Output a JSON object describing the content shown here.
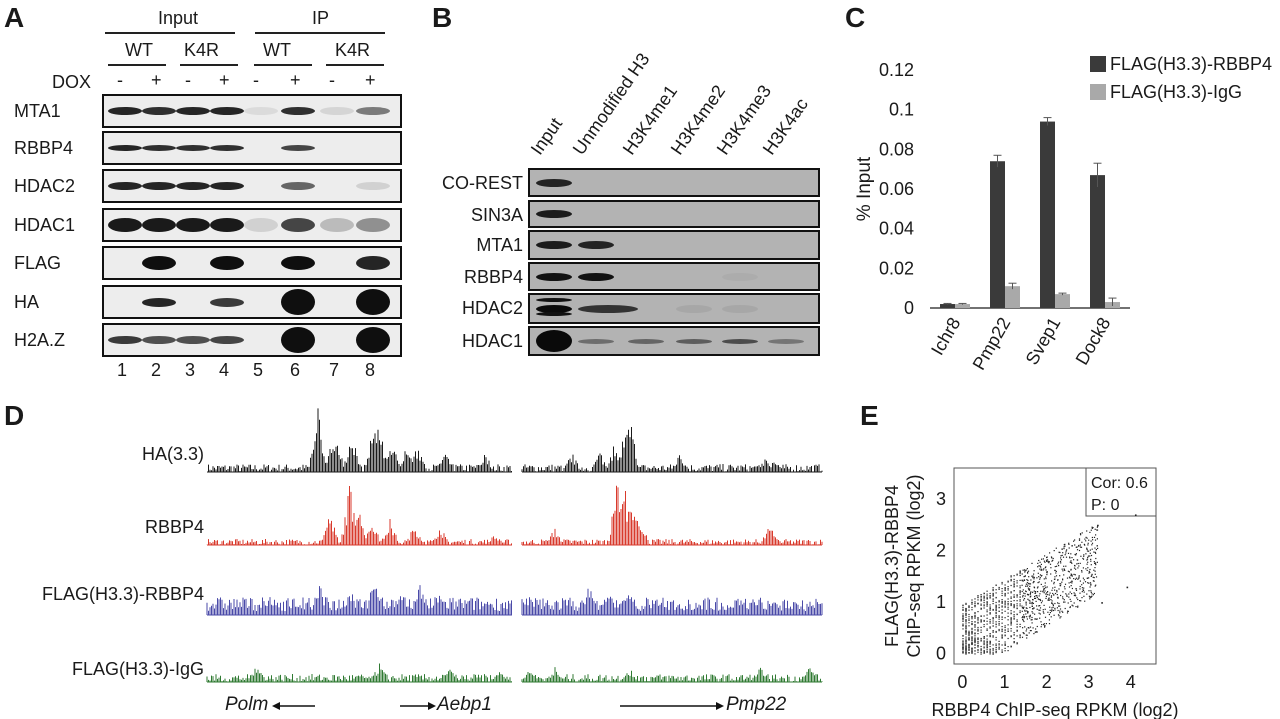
{
  "panels": {
    "A": "A",
    "B": "B",
    "C": "C",
    "D": "D",
    "E": "E"
  },
  "panelA": {
    "groups": [
      "Input",
      "IP"
    ],
    "genotypes": [
      "WT",
      "K4R",
      "WT",
      "K4R"
    ],
    "dox_label": "DOX",
    "dox": [
      "-",
      "+",
      "-",
      "+",
      "-",
      "+",
      "-",
      "+"
    ],
    "rows": [
      "MTA1",
      "RBBP4",
      "HDAC2",
      "HDAC1",
      "FLAG",
      "HA",
      "H2A.Z"
    ],
    "lanes": [
      "1",
      "2",
      "3",
      "4",
      "5",
      "6",
      "7",
      "8"
    ]
  },
  "panelB": {
    "columns": [
      "Input",
      "Unmodified H3",
      "H3K4me1",
      "H3K4me2",
      "H3K4me3",
      "H3K4ac"
    ],
    "rows": [
      "CO-REST",
      "SIN3A",
      "MTA1",
      "RBBP4",
      "HDAC2",
      "HDAC1"
    ]
  },
  "chart_data": [
    {
      "type": "bar",
      "panel": "C",
      "categories": [
        "Ichr8",
        "Pmp22",
        "Svep1",
        "Dock8"
      ],
      "ylabel": "% Input",
      "ylim": [
        0,
        0.12
      ],
      "yticks": [
        "0",
        "0.02",
        "0.04",
        "0.06",
        "0.08",
        "0.1",
        "0.12"
      ],
      "legend_position": "top-right",
      "series": [
        {
          "name": "FLAG(H3.3)-RBBP4",
          "values": [
            0.002,
            0.074,
            0.094,
            0.067
          ],
          "errors": [
            0.0003,
            0.003,
            0.002,
            0.006
          ],
          "color": "#3a3a3a"
        },
        {
          "name": "FLAG(H3.3)-IgG",
          "values": [
            0.002,
            0.011,
            0.007,
            0.003
          ],
          "errors": [
            0.0003,
            0.0015,
            0.0005,
            0.002
          ],
          "color": "#a9a9a9"
        }
      ]
    },
    {
      "type": "scatter",
      "panel": "E",
      "xlabel": "RBBP4 ChIP-seq RPKM (log2)",
      "ylabel_line1": "FLAG(H3.3)-RBBP4",
      "ylabel_line2": "ChIP-seq RPKM (log2)",
      "xlim": [
        -0.2,
        4.6
      ],
      "ylim": [
        -0.2,
        3.6
      ],
      "xticks": [
        "0",
        "1",
        "2",
        "3",
        "4"
      ],
      "yticks": [
        "0",
        "1",
        "2",
        "3"
      ],
      "annotation": [
        "Cor: 0.6",
        "P: 0"
      ]
    }
  ],
  "panelD": {
    "tracks": [
      {
        "label": "HA(3.3)",
        "color": "#1a1a1a"
      },
      {
        "label": "RBBP4",
        "color": "#d83a2c"
      },
      {
        "label": "FLAG(H3.3)-RBBP4",
        "color": "#4a4aa8"
      },
      {
        "label": "FLAG(H3.3)-IgG",
        "color": "#2f7a32"
      }
    ],
    "genes": [
      "Polm",
      "Aebp1",
      "Pmp22"
    ]
  }
}
